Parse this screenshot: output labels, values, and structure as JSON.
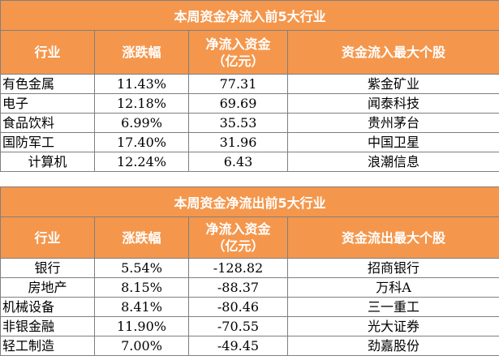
{
  "inflow": {
    "title": "本周资金净流入前5大行业",
    "headers": {
      "industry": "行业",
      "change": "涨跌幅",
      "net_line1": "净流入资金",
      "net_line2": "（亿元）",
      "top_stock": "资金流入最大个股"
    },
    "rows": [
      {
        "industry": "有色金属",
        "change": "11.43%",
        "net": "77.31",
        "stock": "紫金矿业"
      },
      {
        "industry": "电子",
        "change": "12.18%",
        "net": "69.69",
        "stock": "闻泰科技"
      },
      {
        "industry": "食品饮料",
        "change": "6.99%",
        "net": "35.53",
        "stock": "贵州茅台"
      },
      {
        "industry": "国防军工",
        "change": "17.40%",
        "net": "31.96",
        "stock": "中国卫星"
      },
      {
        "industry": "计算机",
        "change": "12.24%",
        "net": "6.43",
        "stock": "浪潮信息"
      }
    ]
  },
  "outflow": {
    "title": "本周资金净流出前5大行业",
    "headers": {
      "industry": "行业",
      "change": "涨跌幅",
      "net_line1": "净流入资金",
      "net_line2": "（亿元）",
      "top_stock": "资金流出最大个股"
    },
    "rows": [
      {
        "industry": "银行",
        "change": "5.54%",
        "net": "-128.82",
        "stock": "招商银行"
      },
      {
        "industry": "房地产",
        "change": "8.15%",
        "net": "-88.37",
        "stock": "万科A"
      },
      {
        "industry": "机械设备",
        "change": "8.41%",
        "net": "-80.46",
        "stock": "三一重工"
      },
      {
        "industry": "非银金融",
        "change": "11.90%",
        "net": "-70.55",
        "stock": "光大证券"
      },
      {
        "industry": "轻工制造",
        "change": "7.00%",
        "net": "-49.45",
        "stock": "劲嘉股份"
      }
    ]
  }
}
